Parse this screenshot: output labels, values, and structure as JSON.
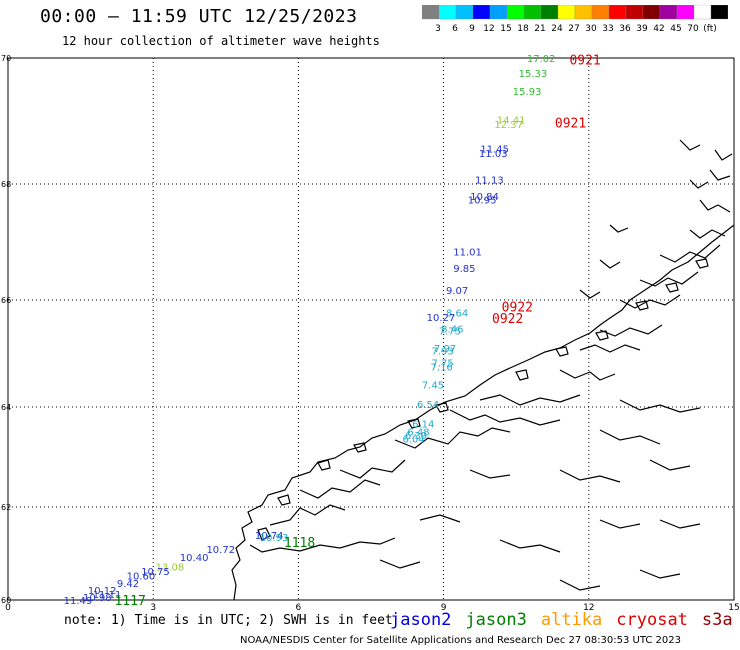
{
  "header": {
    "title": "00:00 – 11:59 UTC 12/25/2023",
    "subtitle": "12 hour collection of altimeter wave heights"
  },
  "legend": {
    "colors": [
      "#808080",
      "#00ffff",
      "#00c0ff",
      "#0000ff",
      "#00a0ff",
      "#00ff00",
      "#00c000",
      "#008000",
      "#ffff00",
      "#ffc000",
      "#ff8000",
      "#ff0000",
      "#c00000",
      "#800000",
      "#a000a0",
      "#ff00ff",
      "#ffffff",
      "#000000"
    ],
    "labels": [
      "3",
      "6",
      "9",
      "12",
      "15",
      "18",
      "21",
      "24",
      "27",
      "30",
      "33",
      "36",
      "39",
      "42",
      "45",
      "70",
      "(ft)"
    ]
  },
  "map": {
    "lat_labels": [
      "70",
      "68",
      "66",
      "64",
      "62",
      "60"
    ],
    "lon_labels": [
      "0",
      "3",
      "6",
      "9",
      "12",
      "15"
    ],
    "passes": [
      {
        "text": "0921",
        "color": "#e00000",
        "lon": 11.6,
        "lat": 69.98
      },
      {
        "text": "0921",
        "color": "#e00000",
        "lon": 11.3,
        "lat": 68.98
      },
      {
        "text": "0922",
        "color": "#e00000",
        "lon": 10.2,
        "lat": 65.88
      },
      {
        "text": "0922",
        "color": "#e00000",
        "lon": 10.0,
        "lat": 65.66
      },
      {
        "text": "1118",
        "color": "#008000",
        "lon": 5.7,
        "lat": 61.25
      },
      {
        "text": "1117",
        "color": "#008000",
        "lon": 2.2,
        "lat": 60.0
      }
    ],
    "obs": [
      {
        "v": "17.02",
        "c": "#33bb33",
        "lon": 10.72,
        "lat": 70.0
      },
      {
        "v": "15.33",
        "c": "#33bb33",
        "lon": 10.55,
        "lat": 69.76
      },
      {
        "v": "15.93",
        "c": "#33bb33",
        "lon": 10.43,
        "lat": 69.48
      },
      {
        "v": "14.41",
        "c": "#99cc33",
        "lon": 10.1,
        "lat": 69.02
      },
      {
        "v": "12.37",
        "c": "#99cc33",
        "lon": 10.05,
        "lat": 68.95
      },
      {
        "v": "11.45",
        "c": "#2233cc",
        "lon": 9.76,
        "lat": 68.56
      },
      {
        "v": "11.03",
        "c": "#2233cc",
        "lon": 9.73,
        "lat": 68.49
      },
      {
        "v": "11.13",
        "c": "#2233cc",
        "lon": 9.65,
        "lat": 68.07
      },
      {
        "v": "10.84",
        "c": "#2233cc",
        "lon": 9.55,
        "lat": 67.79
      },
      {
        "v": "10.95",
        "c": "#2233cc",
        "lon": 9.5,
        "lat": 67.73
      },
      {
        "v": "11.01",
        "c": "#2233cc",
        "lon": 9.2,
        "lat": 66.84
      },
      {
        "v": "9.85",
        "c": "#2233cc",
        "lon": 9.2,
        "lat": 66.55
      },
      {
        "v": "9.07",
        "c": "#2233cc",
        "lon": 9.05,
        "lat": 66.17
      },
      {
        "v": "8.64",
        "c": "#22aacc",
        "lon": 9.05,
        "lat": 65.77
      },
      {
        "v": "10.27",
        "c": "#2233cc",
        "lon": 8.65,
        "lat": 65.68
      },
      {
        "v": "8.46",
        "c": "#22aacc",
        "lon": 8.95,
        "lat": 65.47
      },
      {
        "v": "7.75",
        "c": "#22aacc",
        "lon": 8.9,
        "lat": 65.43
      },
      {
        "v": "7.97",
        "c": "#22aacc",
        "lon": 8.8,
        "lat": 65.1
      },
      {
        "v": "7.93",
        "c": "#22aacc",
        "lon": 8.75,
        "lat": 65.06
      },
      {
        "v": "7.75",
        "c": "#22aacc",
        "lon": 8.75,
        "lat": 64.83
      },
      {
        "v": "7.16",
        "c": "#22aacc",
        "lon": 8.73,
        "lat": 64.76
      },
      {
        "v": "7.45",
        "c": "#22aacc",
        "lon": 8.55,
        "lat": 64.42
      },
      {
        "v": "6.54",
        "c": "#22aacc",
        "lon": 8.45,
        "lat": 64.06
      },
      {
        "v": "6.14",
        "c": "#22aacc",
        "lon": 8.35,
        "lat": 63.67
      },
      {
        "v": "6.48",
        "c": "#22aacc",
        "lon": 8.25,
        "lat": 63.51
      },
      {
        "v": "6.39",
        "c": "#22aacc",
        "lon": 8.2,
        "lat": 63.44
      },
      {
        "v": "6.04",
        "c": "#22aacc",
        "lon": 8.15,
        "lat": 63.37
      },
      {
        "v": "10.74",
        "c": "#2233cc",
        "lon": 5.1,
        "lat": 61.4
      },
      {
        "v": "10.93",
        "c": "#22aacc",
        "lon": 5.2,
        "lat": 61.36
      },
      {
        "v": "10.72",
        "c": "#2233cc",
        "lon": 4.1,
        "lat": 61.1
      },
      {
        "v": "10.40",
        "c": "#2233cc",
        "lon": 3.55,
        "lat": 60.92
      },
      {
        "v": "13.08",
        "c": "#99cc33",
        "lon": 3.05,
        "lat": 60.72
      },
      {
        "v": "10.75",
        "c": "#2233cc",
        "lon": 2.75,
        "lat": 60.62
      },
      {
        "v": "10.60",
        "c": "#2233cc",
        "lon": 2.45,
        "lat": 60.53
      },
      {
        "v": "9.42",
        "c": "#2233cc",
        "lon": 2.25,
        "lat": 60.37
      },
      {
        "v": "10.12",
        "c": "#2233cc",
        "lon": 1.65,
        "lat": 60.21
      },
      {
        "v": "11.11",
        "c": "#2233cc",
        "lon": 1.75,
        "lat": 60.13
      },
      {
        "v": "10.98",
        "c": "#2233cc",
        "lon": 1.55,
        "lat": 60.06
      },
      {
        "v": "11.49",
        "c": "#2233cc",
        "lon": 1.15,
        "lat": 59.97
      }
    ]
  },
  "footer": {
    "note": "note: 1) Time is in UTC; 2) SWH is in feet",
    "credit": "NOAA/NESDIS Center for Satellite Applications and Research   Dec 27 08:30:53 UTC 2023",
    "satellites": [
      {
        "name": "jason2",
        "color": "#0000dd"
      },
      {
        "name": "jason3",
        "color": "#008000"
      },
      {
        "name": "altika",
        "color": "#ff9900"
      },
      {
        "name": "cryosat",
        "color": "#dd0000"
      },
      {
        "name": "s3a",
        "color": "#990000"
      }
    ]
  }
}
